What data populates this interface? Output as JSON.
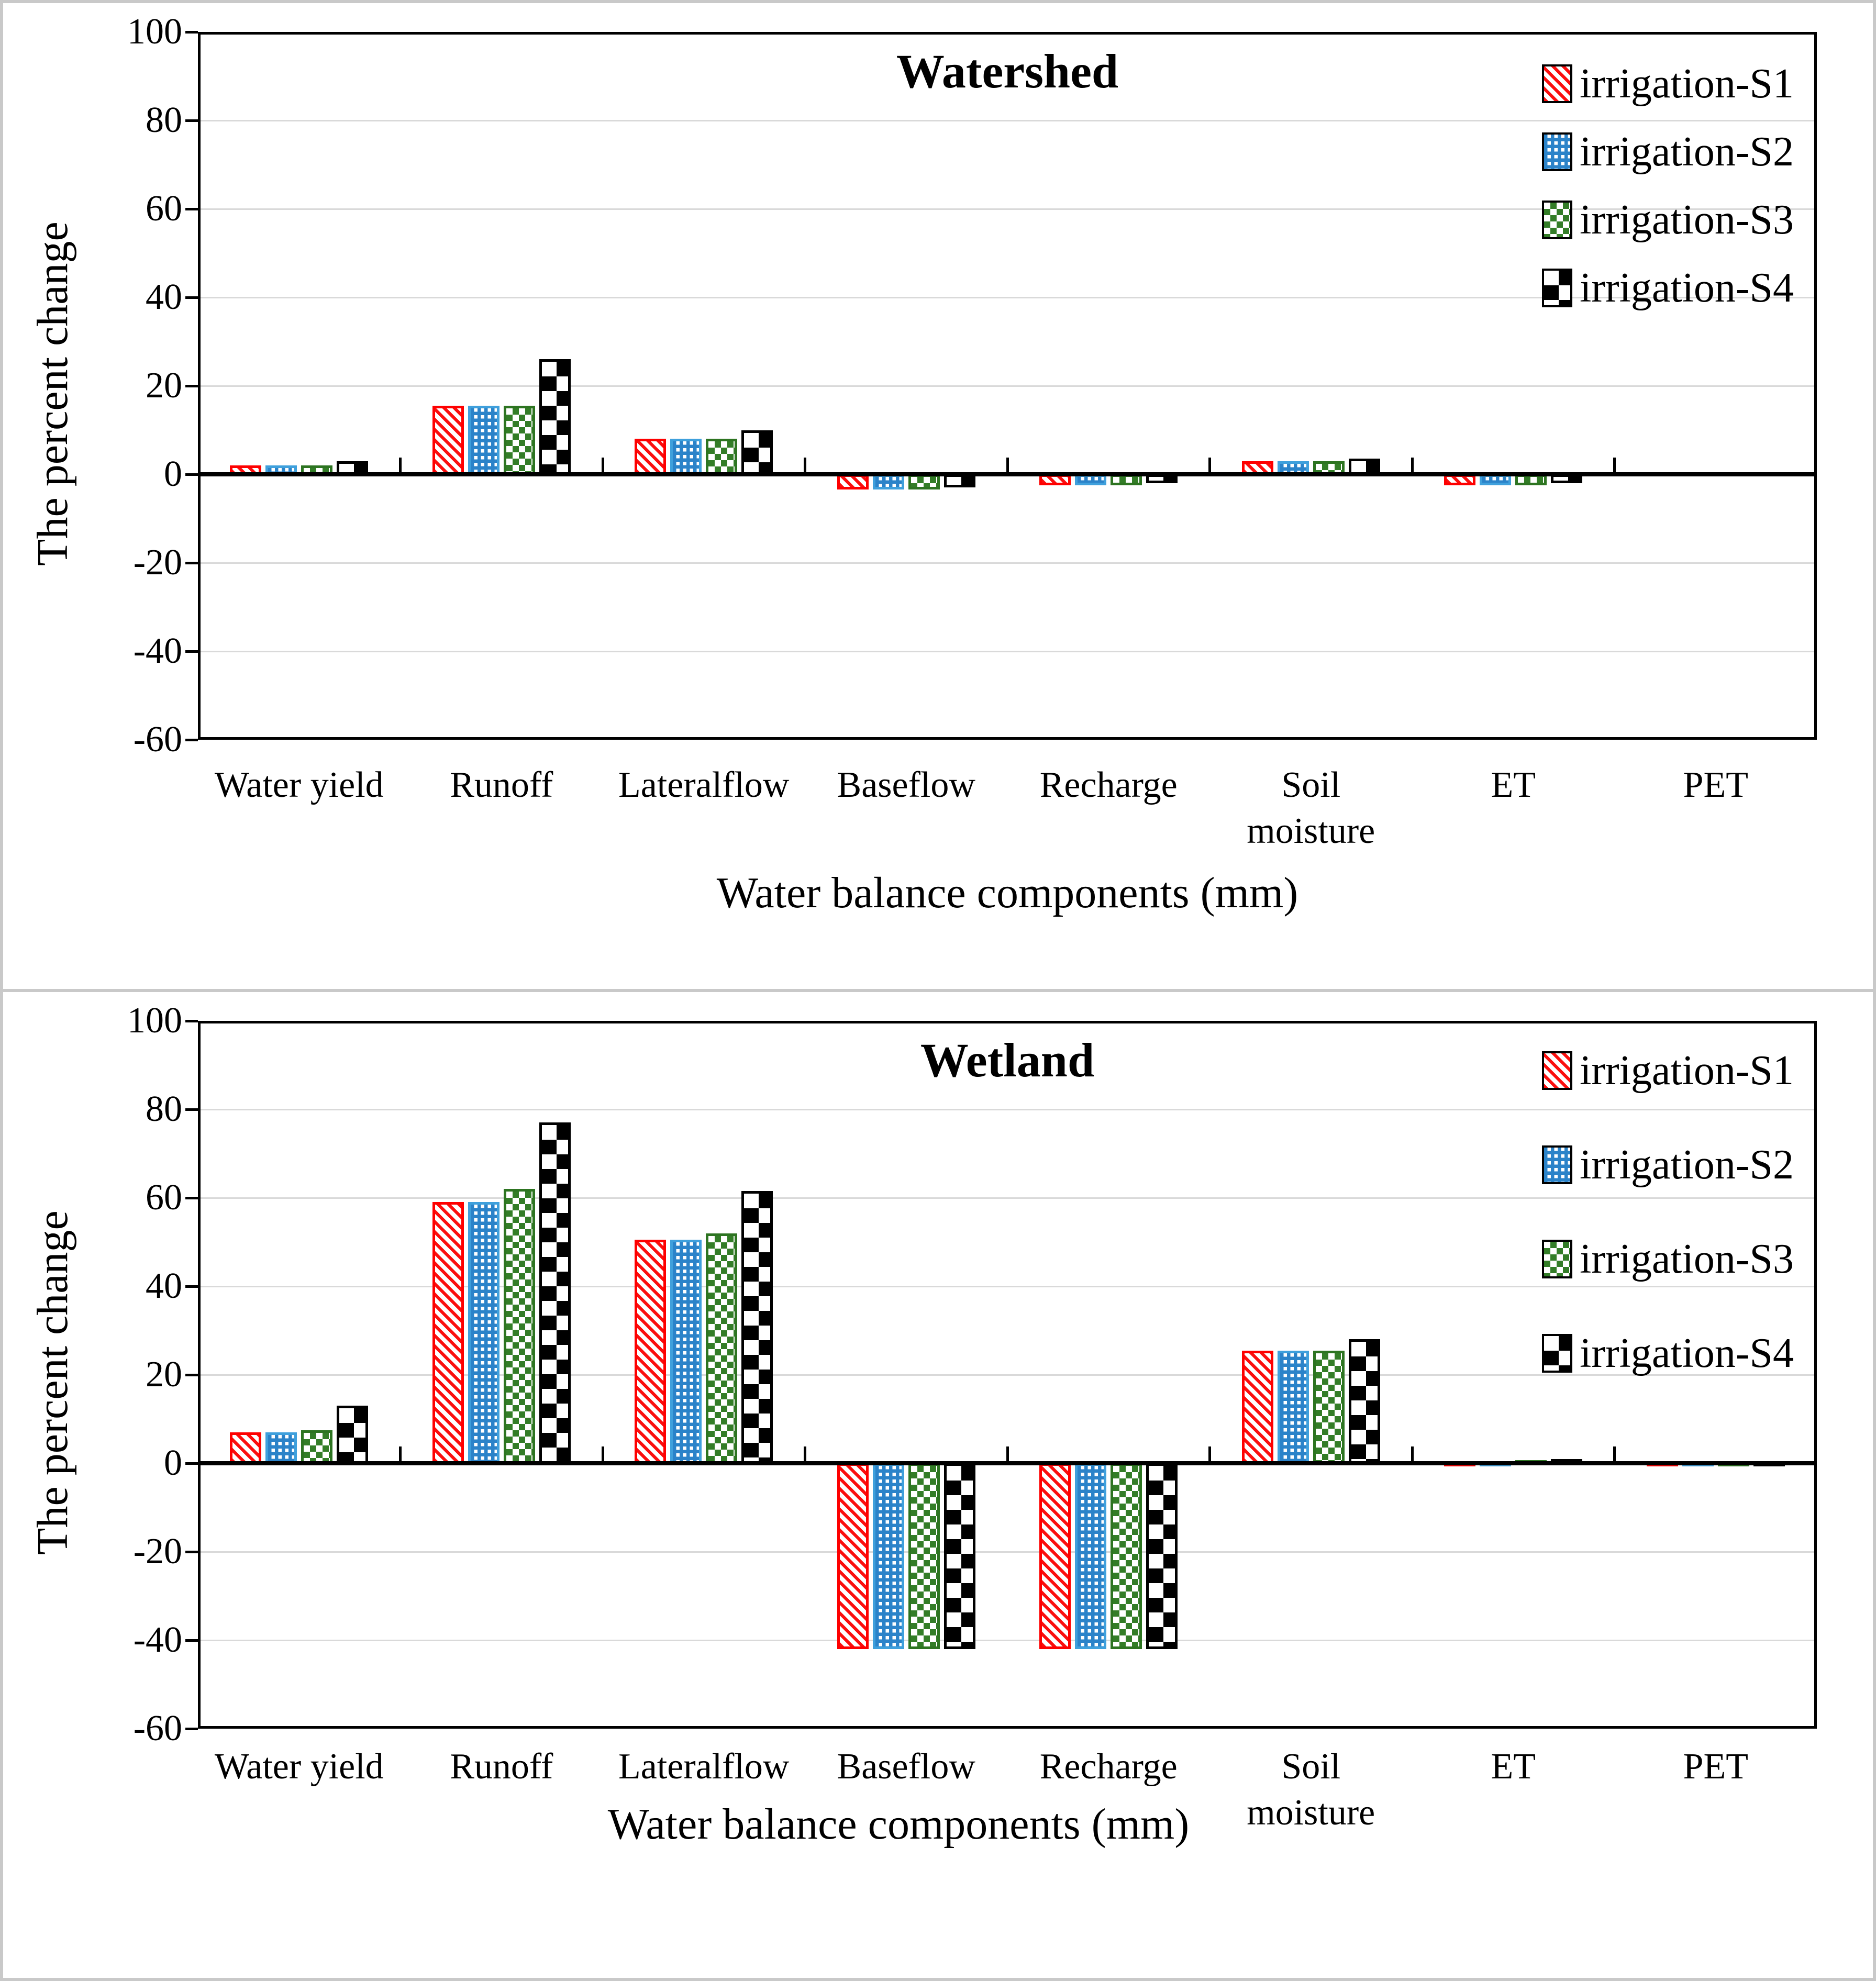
{
  "figure": {
    "background": "#ffffff",
    "frame_color": "#c9c9c9",
    "gridline_color": "#d9d9d9",
    "axis_color": "#000000"
  },
  "chart_data": [
    {
      "type": "bar",
      "title": "Watershed",
      "ylabel": "The percent change",
      "xlabel": "Water balance components (mm)",
      "ylim": [
        -60,
        100
      ],
      "ytick_step": 20,
      "grid": true,
      "legend_position": "top-right",
      "categories": [
        "Water yield",
        "Runoff",
        "Lateralflow",
        "Baseflow",
        "Recharge",
        "Soil moisture",
        "ET",
        "PET"
      ],
      "category_line_breaks": {
        "Soil moisture": [
          "Soil",
          "moisture"
        ]
      },
      "series": [
        {
          "name": "irrigation-S1",
          "pattern": "red-diagonal-stripes",
          "color": "#fe0000",
          "values": [
            2,
            15.5,
            8,
            -3,
            -2,
            3,
            -2,
            0
          ]
        },
        {
          "name": "irrigation-S2",
          "pattern": "blue-dot-grid",
          "color": "#2b83c9",
          "values": [
            2,
            15.5,
            8,
            -3,
            -2,
            3,
            -2,
            0
          ]
        },
        {
          "name": "irrigation-S3",
          "pattern": "green-small-checker",
          "color": "#337d27",
          "values": [
            2,
            15.5,
            8,
            -3,
            -2,
            3,
            -2,
            0
          ]
        },
        {
          "name": "irrigation-S4",
          "pattern": "black-checkerboard",
          "color": "#000000",
          "values": [
            3,
            26,
            10,
            -2.5,
            -1.5,
            3.5,
            -1.5,
            0
          ]
        }
      ]
    },
    {
      "type": "bar",
      "title": "Wetland",
      "ylabel": "The percent change",
      "xlabel": "Water balance components (mm)",
      "ylim": [
        -60,
        100
      ],
      "ytick_step": 20,
      "grid": true,
      "legend_position": "top-right",
      "categories": [
        "Water yield",
        "Runoff",
        "Lateralflow",
        "Baseflow",
        "Recharge",
        "Soil moisture",
        "ET",
        "PET"
      ],
      "category_line_breaks": {
        "Soil moisture": [
          "Soil",
          "moisture"
        ]
      },
      "series": [
        {
          "name": "irrigation-S1",
          "pattern": "red-diagonal-stripes",
          "color": "#fe0000",
          "values": [
            7,
            59,
            50.5,
            -41.5,
            -41.5,
            25.5,
            0.5,
            0.3
          ]
        },
        {
          "name": "irrigation-S2",
          "pattern": "blue-dot-grid",
          "color": "#2b83c9",
          "values": [
            7,
            59,
            50.5,
            -41.5,
            -41.5,
            25.5,
            0.5,
            0.3
          ]
        },
        {
          "name": "irrigation-S3",
          "pattern": "green-small-checker",
          "color": "#337d27",
          "values": [
            7.5,
            62,
            52,
            -41.5,
            -41.5,
            25.5,
            0.7,
            0.3
          ]
        },
        {
          "name": "irrigation-S4",
          "pattern": "black-checkerboard",
          "color": "#000000",
          "values": [
            13,
            77,
            61.5,
            -41.5,
            -41.5,
            28,
            1,
            0.3
          ]
        }
      ]
    }
  ]
}
